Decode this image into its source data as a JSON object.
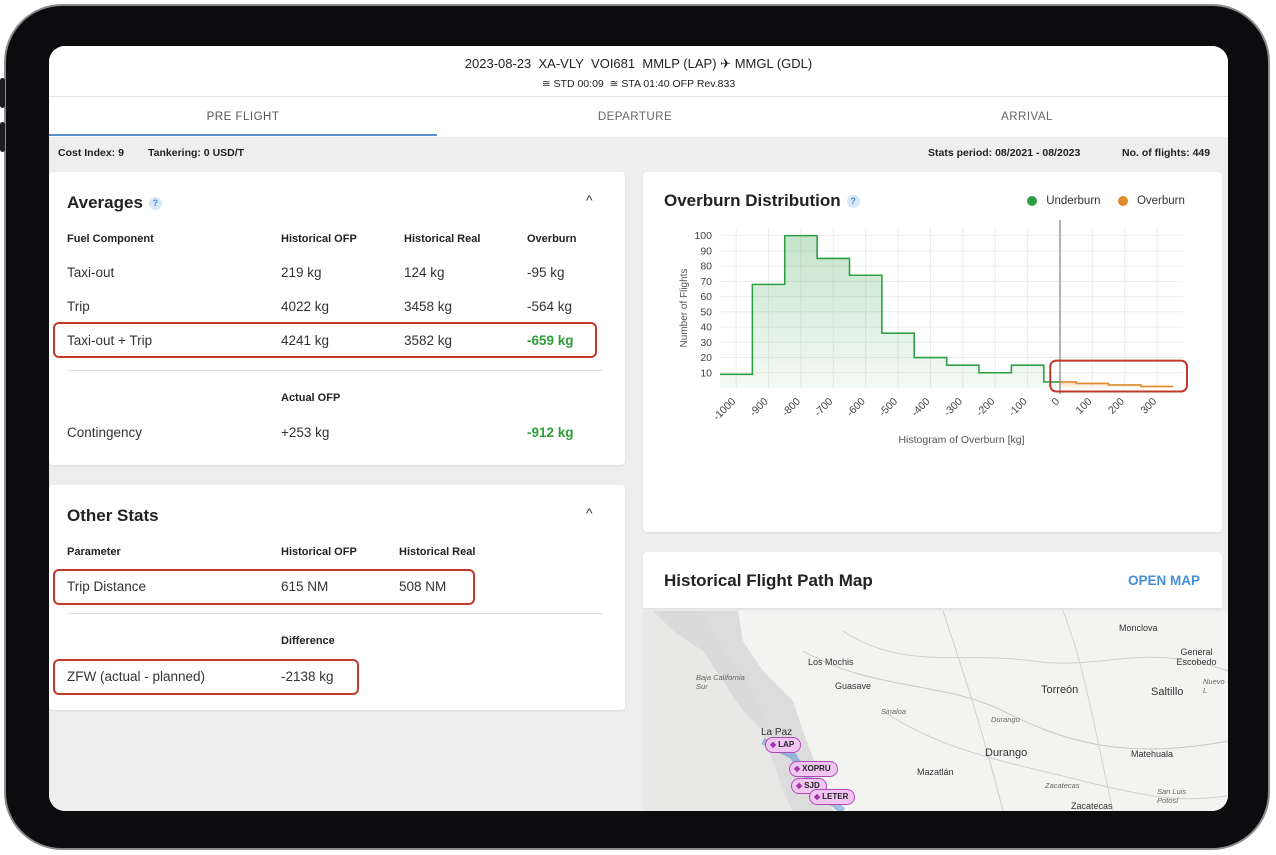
{
  "header": {
    "date": "2023-08-23",
    "registration": "XA-VLY",
    "flight": "VOI681",
    "origin": "MMLP (LAP)",
    "destination": "MMGL (GDL)",
    "std_label": "STD",
    "std": "00:09",
    "sta_label": "STA",
    "sta": "01:40",
    "ofp": "OFP Rev.833"
  },
  "tabs": [
    {
      "label": "PRE FLIGHT",
      "active": true
    },
    {
      "label": "DEPARTURE",
      "active": false
    },
    {
      "label": "ARRIVAL",
      "active": false
    }
  ],
  "infobar": {
    "cost_index": "Cost Index: 9",
    "tankering": "Tankering: 0 USD/T",
    "stats_period": "Stats period: 08/2021 - 08/2023",
    "num_flights": "No. of flights: 449"
  },
  "averages": {
    "title": "Averages",
    "help": "?",
    "caret": "^",
    "headers": [
      "Fuel Component",
      "Historical OFP",
      "Historical Real",
      "Overburn"
    ],
    "rows": [
      [
        "Taxi-out",
        "219 kg",
        "124 kg",
        "-95 kg"
      ],
      [
        "Trip",
        "4022 kg",
        "3458 kg",
        "-564 kg"
      ],
      [
        "Taxi-out + Trip",
        "4241 kg",
        "3582 kg",
        "-659 kg"
      ]
    ],
    "actual_header": "Actual OFP",
    "contingency": [
      "Contingency",
      "+253 kg",
      "-912 kg"
    ]
  },
  "other_stats": {
    "title": "Other Stats",
    "caret": "^",
    "headers": [
      "Parameter",
      "Historical OFP",
      "Historical Real"
    ],
    "trip_distance": [
      "Trip Distance",
      "615 NM",
      "508 NM"
    ],
    "difference_header": "Difference",
    "zfw": [
      "ZFW (actual - planned)",
      "-2138 kg"
    ]
  },
  "overburn": {
    "title": "Overburn Distribution",
    "help": "?",
    "legend": [
      {
        "name": "Underburn",
        "color": "#2ea043"
      },
      {
        "name": "Overburn",
        "color": "#e08a2c"
      }
    ]
  },
  "chart_data": {
    "type": "area",
    "xlabel": "Histogram of Overburn [kg]",
    "ylabel": "Number of Flights",
    "x_ticks": [
      -1000,
      -900,
      -800,
      -700,
      -600,
      -500,
      -400,
      -300,
      -200,
      -100,
      0,
      100,
      200,
      300
    ],
    "y_ticks": [
      10,
      20,
      30,
      40,
      50,
      60,
      70,
      80,
      90,
      100
    ],
    "xlim": [
      -1050,
      380
    ],
    "ylim": [
      0,
      105
    ],
    "grid": true,
    "legend_position": "top-right",
    "series": [
      {
        "name": "Underburn",
        "color": "#2ea043",
        "bins": [
          {
            "x0": -1050,
            "x1": -950,
            "y": 9
          },
          {
            "x0": -950,
            "x1": -850,
            "y": 68
          },
          {
            "x0": -850,
            "x1": -750,
            "y": 100
          },
          {
            "x0": -750,
            "x1": -650,
            "y": 85
          },
          {
            "x0": -650,
            "x1": -550,
            "y": 74
          },
          {
            "x0": -550,
            "x1": -450,
            "y": 36
          },
          {
            "x0": -450,
            "x1": -350,
            "y": 20
          },
          {
            "x0": -350,
            "x1": -250,
            "y": 15
          },
          {
            "x0": -250,
            "x1": -150,
            "y": 10
          },
          {
            "x0": -150,
            "x1": -50,
            "y": 15
          },
          {
            "x0": -50,
            "x1": 0,
            "y": 4
          }
        ]
      },
      {
        "name": "Overburn",
        "color": "#e08a2c",
        "bins": [
          {
            "x0": 0,
            "x1": 50,
            "y": 4
          },
          {
            "x0": 50,
            "x1": 150,
            "y": 3
          },
          {
            "x0": 150,
            "x1": 250,
            "y": 2
          },
          {
            "x0": 250,
            "x1": 350,
            "y": 1
          }
        ]
      }
    ]
  },
  "map_card": {
    "title": "Historical Flight Path Map",
    "open_map": "OPEN MAP"
  },
  "map": {
    "places": [
      "Monclova",
      "General Escobedo",
      "Los Mochis",
      "Baja California Sur",
      "Guasave",
      "Torreón",
      "Saltillo",
      "Nuevo L",
      "Sinaloa",
      "Durango",
      "La Paz",
      "Durango",
      "Matehuala",
      "Mazatlán",
      "Zacatecas",
      "San Luis Potosí",
      "Zacatecas"
    ],
    "waypoints": [
      "LAP",
      "XOPRU",
      "SJD",
      "LETER"
    ]
  }
}
